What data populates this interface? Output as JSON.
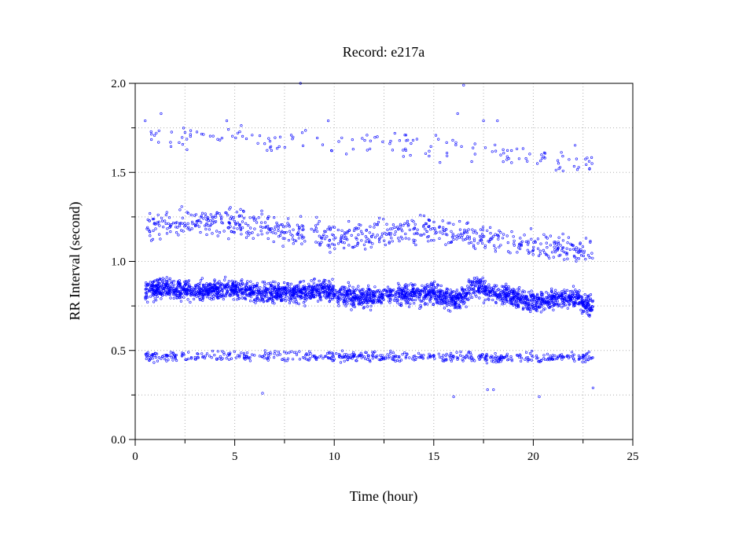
{
  "chart_data": {
    "type": "scatter",
    "title": "Record:  e217a",
    "xlabel": "Time (hour)",
    "ylabel": "RR Interval (second)",
    "xlim": [
      0,
      25
    ],
    "ylim": [
      0.0,
      2.0
    ],
    "x_ticks": [
      "0",
      "5",
      "10",
      "15",
      "20",
      "25"
    ],
    "y_ticks": [
      "0.0",
      "0.5",
      "1.0",
      "1.5",
      "2.0"
    ],
    "grid": true,
    "marker_color": "#0000ff",
    "series": [
      {
        "bands": [
          {
            "x_start": 0.5,
            "x_end": 23.0,
            "center": [
              [
                0.5,
                0.83
              ],
              [
                1.5,
                0.85
              ],
              [
                2.5,
                0.84
              ],
              [
                3.5,
                0.83
              ],
              [
                4.5,
                0.85
              ],
              [
                5.5,
                0.84
              ],
              [
                6.5,
                0.82
              ],
              [
                7.5,
                0.83
              ],
              [
                8.5,
                0.83
              ],
              [
                9.5,
                0.85
              ],
              [
                10.0,
                0.82
              ],
              [
                11.0,
                0.8
              ],
              [
                12.0,
                0.8
              ],
              [
                13.0,
                0.81
              ],
              [
                14.0,
                0.82
              ],
              [
                15.0,
                0.82
              ],
              [
                16.0,
                0.78
              ],
              [
                16.5,
                0.8
              ],
              [
                17.0,
                0.87
              ],
              [
                18.0,
                0.82
              ],
              [
                19.0,
                0.8
              ],
              [
                20.0,
                0.77
              ],
              [
                21.0,
                0.79
              ],
              [
                22.0,
                0.8
              ],
              [
                23.0,
                0.74
              ]
            ],
            "spread": 0.06
          },
          {
            "x_start": 0.5,
            "x_end": 23.0,
            "center": [
              [
                0.5,
                0.47
              ],
              [
                23.0,
                0.46
              ]
            ],
            "spread": 0.03
          },
          {
            "x_start": 0.5,
            "x_end": 23.0,
            "center": [
              [
                0.5,
                1.2
              ],
              [
                4.5,
                1.23
              ],
              [
                10.0,
                1.13
              ],
              [
                15.0,
                1.18
              ],
              [
                20.0,
                1.08
              ],
              [
                23.0,
                1.07
              ]
            ],
            "spread": 0.08
          },
          {
            "x_start": 0.5,
            "x_end": 23.0,
            "center": [
              [
                0.5,
                1.7
              ],
              [
                10.0,
                1.68
              ],
              [
                15.0,
                1.65
              ],
              [
                20.0,
                1.58
              ],
              [
                23.0,
                1.55
              ]
            ],
            "spread": 0.07
          }
        ],
        "outliers": [
          {
            "x": 8.3,
            "y": 2.0
          },
          {
            "x": 16.5,
            "y": 1.99
          },
          {
            "x": 6.4,
            "y": 0.26
          },
          {
            "x": 16.0,
            "y": 0.24
          },
          {
            "x": 20.3,
            "y": 0.24
          },
          {
            "x": 23.0,
            "y": 0.29
          },
          {
            "x": 17.7,
            "y": 0.28
          },
          {
            "x": 18.0,
            "y": 0.28
          },
          {
            "x": 1.3,
            "y": 1.83
          },
          {
            "x": 16.2,
            "y": 1.83
          },
          {
            "x": 9.7,
            "y": 1.79
          },
          {
            "x": 0.5,
            "y": 1.79
          },
          {
            "x": 4.6,
            "y": 1.79
          },
          {
            "x": 17.5,
            "y": 1.79
          },
          {
            "x": 18.2,
            "y": 1.79
          }
        ]
      }
    ]
  }
}
